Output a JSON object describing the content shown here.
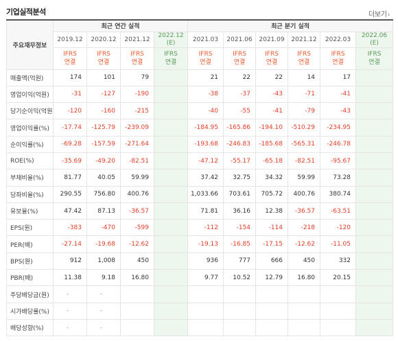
{
  "header": {
    "title": "기업실적분석",
    "more_label": "더보기",
    "more_icon": "chevron-right-icon"
  },
  "table": {
    "row_header": "주요재무정보",
    "group_annual": "최근 연간 실적",
    "group_quarter": "최근 분기 실적",
    "periods": [
      "2019.12",
      "2020.12",
      "2021.12",
      "2022.12",
      "2021.03",
      "2021.06",
      "2021.09",
      "2021.12",
      "2022.03",
      "2022.06"
    ],
    "estimate_suffix": "(E)",
    "ifrs_line1": "IFRS",
    "ifrs_line2": "연결",
    "rows": [
      {
        "label": "매출액(억원)",
        "values": [
          "174",
          "101",
          "79",
          "",
          "21",
          "22",
          "22",
          "14",
          "17",
          ""
        ]
      },
      {
        "label": "영업이익(억원)",
        "values": [
          "-31",
          "-127",
          "-190",
          "",
          "-38",
          "-37",
          "-43",
          "-71",
          "-41",
          ""
        ]
      },
      {
        "label": "당기순이익(억원)",
        "values": [
          "-120",
          "-160",
          "-215",
          "",
          "-40",
          "-55",
          "-41",
          "-79",
          "-43",
          ""
        ]
      },
      {
        "label": "영업이익률(%)",
        "values": [
          "-17.74",
          "-125.79",
          "-239.09",
          "",
          "-184.95",
          "-165.86",
          "-194.10",
          "-510.29",
          "-234.95",
          ""
        ]
      },
      {
        "label": "순이익률(%)",
        "values": [
          "-69.28",
          "-157.59",
          "-271.64",
          "",
          "-193.68",
          "-246.83",
          "-185.68",
          "-565.31",
          "-246.78",
          ""
        ]
      },
      {
        "label": "ROE(%)",
        "values": [
          "-35.69",
          "-49.20",
          "-82.51",
          "",
          "-47.12",
          "-55.17",
          "-65.18",
          "-82.51",
          "-95.67",
          ""
        ]
      },
      {
        "label": "부채비율(%)",
        "values": [
          "81.77",
          "40.05",
          "59.99",
          "",
          "37.42",
          "32.75",
          "34.32",
          "59.99",
          "73.28",
          ""
        ]
      },
      {
        "label": "당좌비율(%)",
        "values": [
          "290.55",
          "756.80",
          "400.76",
          "",
          "1,033.66",
          "703.61",
          "705.72",
          "400.76",
          "380.74",
          ""
        ]
      },
      {
        "label": "유보율(%)",
        "values": [
          "47.42",
          "87.13",
          "-36.57",
          "",
          "71.81",
          "36.16",
          "12.38",
          "-36.57",
          "-63.51",
          ""
        ]
      },
      {
        "label": "EPS(원)",
        "values": [
          "-383",
          "-470",
          "-599",
          "",
          "-112",
          "-154",
          "-114",
          "-218",
          "-120",
          ""
        ]
      },
      {
        "label": "PER(배)",
        "values": [
          "-27.14",
          "-19.68",
          "-12.62",
          "",
          "-19.13",
          "-16.85",
          "-17.15",
          "-12.62",
          "-11.05",
          ""
        ]
      },
      {
        "label": "BPS(원)",
        "values": [
          "912",
          "1,008",
          "450",
          "",
          "936",
          "777",
          "666",
          "450",
          "332",
          ""
        ]
      },
      {
        "label": "PBR(배)",
        "values": [
          "11.38",
          "9.18",
          "16.80",
          "",
          "9.77",
          "10.52",
          "12.79",
          "16.80",
          "20.15",
          ""
        ]
      },
      {
        "label": "주당배당금(원)",
        "values": [
          "-",
          "-",
          "",
          "",
          "",
          "",
          "",
          "",
          "",
          ""
        ]
      },
      {
        "label": "시가배당률(%)",
        "values": [
          "-",
          "-",
          "",
          "",
          "",
          "",
          "",
          "",
          "",
          ""
        ]
      },
      {
        "label": "배당성향(%)",
        "values": [
          "-",
          "-",
          "",
          "",
          "",
          "",
          "",
          "",
          "",
          ""
        ]
      }
    ]
  },
  "colors": {
    "negative": "#e23d28",
    "ifrs": "#ea5a2e",
    "estimate_bg": "#eef7ee",
    "estimate_text": "#3a8a3a"
  }
}
